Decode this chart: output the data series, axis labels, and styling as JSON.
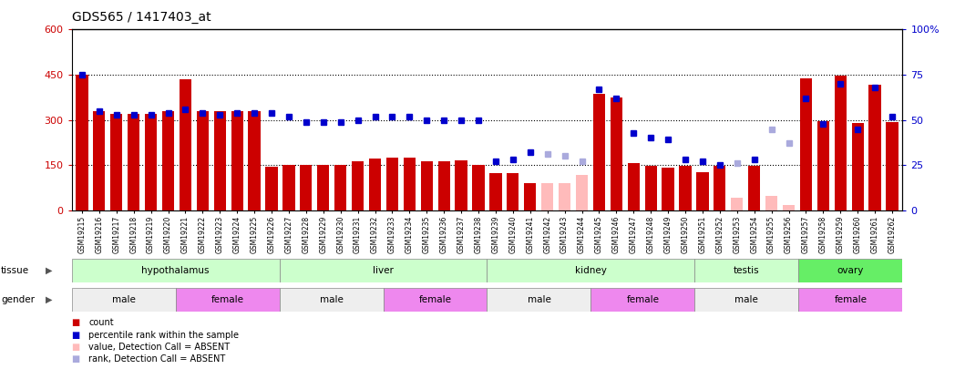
{
  "title": "GDS565 / 1417403_at",
  "samples": [
    "GSM19215",
    "GSM19216",
    "GSM19217",
    "GSM19218",
    "GSM19219",
    "GSM19220",
    "GSM19221",
    "GSM19222",
    "GSM19223",
    "GSM19224",
    "GSM19225",
    "GSM19226",
    "GSM19227",
    "GSM19228",
    "GSM19229",
    "GSM19230",
    "GSM19231",
    "GSM19232",
    "GSM19233",
    "GSM19234",
    "GSM19235",
    "GSM19236",
    "GSM19237",
    "GSM19238",
    "GSM19239",
    "GSM19240",
    "GSM19241",
    "GSM19242",
    "GSM19243",
    "GSM19244",
    "GSM19245",
    "GSM19246",
    "GSM19247",
    "GSM19248",
    "GSM19249",
    "GSM19250",
    "GSM19251",
    "GSM19252",
    "GSM19253",
    "GSM19254",
    "GSM19255",
    "GSM19256",
    "GSM19257",
    "GSM19258",
    "GSM19259",
    "GSM19260",
    "GSM19261",
    "GSM19262"
  ],
  "count_values": [
    450,
    330,
    320,
    320,
    320,
    330,
    435,
    330,
    330,
    330,
    330,
    145,
    152,
    152,
    152,
    152,
    162,
    173,
    175,
    175,
    162,
    162,
    165,
    152,
    122,
    122,
    90,
    90,
    90,
    118,
    388,
    375,
    158,
    148,
    142,
    148,
    128,
    148,
    42,
    148,
    48,
    18,
    438,
    295,
    448,
    290,
    418,
    292
  ],
  "count_absent": [
    false,
    false,
    false,
    false,
    false,
    false,
    false,
    false,
    false,
    false,
    false,
    false,
    false,
    false,
    false,
    false,
    false,
    false,
    false,
    false,
    false,
    false,
    false,
    false,
    false,
    false,
    false,
    true,
    true,
    true,
    false,
    false,
    false,
    false,
    false,
    false,
    false,
    false,
    true,
    false,
    true,
    true,
    false,
    false,
    false,
    false,
    false,
    false
  ],
  "rank_values": [
    75,
    55,
    53,
    53,
    53,
    54,
    56,
    54,
    53,
    54,
    54,
    54,
    52,
    49,
    49,
    49,
    50,
    52,
    52,
    52,
    50,
    50,
    50,
    50,
    27,
    28,
    32,
    31,
    30,
    27,
    67,
    62,
    43,
    40,
    39,
    28,
    27,
    25,
    26,
    28,
    45,
    37,
    62,
    48,
    70,
    45,
    68,
    52
  ],
  "rank_absent": [
    false,
    false,
    false,
    false,
    false,
    false,
    false,
    false,
    false,
    false,
    false,
    false,
    false,
    false,
    false,
    false,
    false,
    false,
    false,
    false,
    false,
    false,
    false,
    false,
    false,
    false,
    false,
    true,
    true,
    true,
    false,
    false,
    false,
    false,
    false,
    false,
    false,
    false,
    true,
    false,
    true,
    true,
    false,
    false,
    false,
    false,
    false,
    false
  ],
  "tissue_groups": [
    {
      "label": "hypothalamus",
      "start": 0,
      "end": 11,
      "color": "#ccffcc"
    },
    {
      "label": "liver",
      "start": 12,
      "end": 23,
      "color": "#ccffcc"
    },
    {
      "label": "kidney",
      "start": 24,
      "end": 35,
      "color": "#ccffcc"
    },
    {
      "label": "testis",
      "start": 36,
      "end": 41,
      "color": "#ccffcc"
    },
    {
      "label": "ovary",
      "start": 42,
      "end": 47,
      "color": "#66ee66"
    }
  ],
  "gender_groups": [
    {
      "label": "male",
      "start": 0,
      "end": 5,
      "color": "#eeeeee"
    },
    {
      "label": "female",
      "start": 6,
      "end": 11,
      "color": "#ee88ee"
    },
    {
      "label": "male",
      "start": 12,
      "end": 17,
      "color": "#eeeeee"
    },
    {
      "label": "female",
      "start": 18,
      "end": 23,
      "color": "#ee88ee"
    },
    {
      "label": "male",
      "start": 24,
      "end": 29,
      "color": "#eeeeee"
    },
    {
      "label": "female",
      "start": 30,
      "end": 35,
      "color": "#ee88ee"
    },
    {
      "label": "male",
      "start": 36,
      "end": 41,
      "color": "#eeeeee"
    },
    {
      "label": "female",
      "start": 42,
      "end": 47,
      "color": "#ee88ee"
    }
  ],
  "ylim_left": [
    0,
    600
  ],
  "ylim_right": [
    0,
    100
  ],
  "yticks_left": [
    0,
    150,
    300,
    450,
    600
  ],
  "yticks_right": [
    0,
    25,
    50,
    75,
    100
  ],
  "bar_color": "#cc0000",
  "bar_absent_color": "#ffbbbb",
  "rank_color": "#0000cc",
  "rank_absent_color": "#aaaadd",
  "background_color": "#ffffff",
  "dotted_lines": [
    150,
    300,
    450
  ]
}
